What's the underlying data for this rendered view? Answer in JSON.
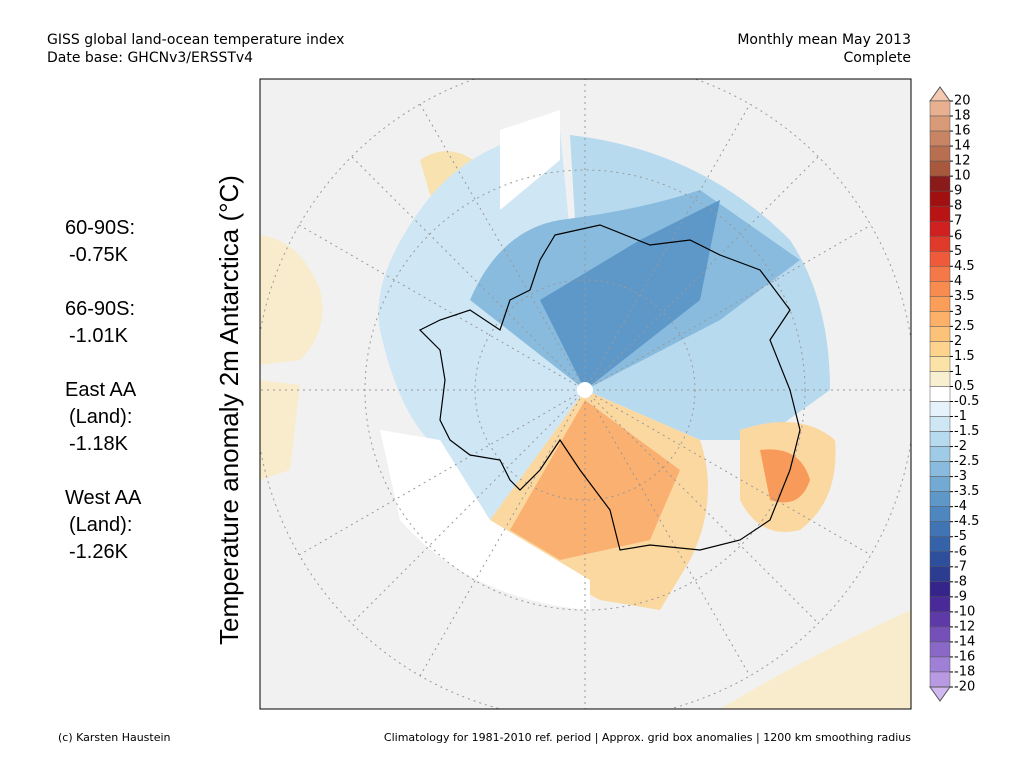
{
  "header": {
    "left_line1": "GISS global land-ocean temperature index",
    "left_line2": "Date base: GHCNv3/ERSSTv4",
    "right_line1": "Monthly mean May 2013",
    "right_line2": "Complete"
  },
  "axis_title": "Temperature anomaly 2m Antarctica (°C)",
  "stats": [
    [
      "60-90S:",
      "-0.75K"
    ],
    [
      "66-90S:",
      "-1.01K"
    ],
    [
      "East AA",
      "(Land):",
      "-1.18K"
    ],
    [
      "West AA",
      "(Land):",
      "-1.26K"
    ]
  ],
  "colorbar": {
    "labels": [
      20,
      18,
      16,
      14,
      12,
      10,
      9,
      8,
      7,
      6,
      5,
      4.5,
      4,
      3.5,
      3,
      2.5,
      2,
      1.5,
      1,
      0.5,
      -0.5,
      -1,
      -1.5,
      -2,
      -2.5,
      -3,
      -3.5,
      -4,
      -4.5,
      -5,
      -6,
      -7,
      -8,
      -9,
      -10,
      -12,
      -14,
      -16,
      -18,
      -20
    ],
    "colors": [
      "#f5c8b0",
      "#e8b090",
      "#d99a78",
      "#c98464",
      "#b86e50",
      "#a8583c",
      "#8b1a1a",
      "#a01010",
      "#b81414",
      "#d02020",
      "#e03a2a",
      "#ee5a3a",
      "#f57848",
      "#f88c50",
      "#fa9e5a",
      "#fcb068",
      "#fdc27a",
      "#fdd38e",
      "#fbe2a6",
      "#f8eed0",
      "#ffffff",
      "#e6f2fb",
      "#cfe6f5",
      "#b8daee",
      "#a0cbe6",
      "#88bbdd",
      "#72aad3",
      "#5e98c9",
      "#4e86bf",
      "#4074b4",
      "#3562a8",
      "#2e4f9c",
      "#2c3c90",
      "#35248a",
      "#4a2a98",
      "#5e3aa8",
      "#7450b8",
      "#8a68c8",
      "#a080d6",
      "#b89ae2",
      "#d0b8f0"
    ]
  },
  "footer": {
    "left": "(c) Karsten Haustein",
    "right": "Climatology for 1981-2010 ref. period | Approx. grid box anomalies | 1200 km smoothing radius"
  }
}
